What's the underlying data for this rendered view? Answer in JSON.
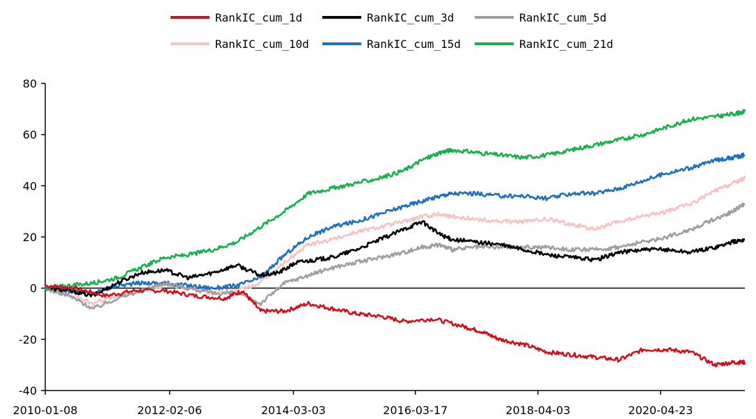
{
  "chart_data": {
    "type": "line",
    "title": "",
    "xlabel": "",
    "ylabel": "",
    "ylim": [
      -40,
      80
    ],
    "yticks": [
      -40,
      -20,
      0,
      20,
      40,
      60,
      80
    ],
    "xlim": [
      0,
      11.7
    ],
    "xticks": [
      {
        "pos": 0.0,
        "label": "2010-01-08"
      },
      {
        "pos": 2.08,
        "label": "2012-02-06"
      },
      {
        "pos": 4.15,
        "label": "2014-03-03"
      },
      {
        "pos": 6.19,
        "label": "2016-03-17"
      },
      {
        "pos": 8.24,
        "label": "2018-04-03"
      },
      {
        "pos": 10.29,
        "label": "2020-04-23"
      }
    ],
    "legend_position": "top",
    "series": [
      {
        "name": "RankIC_cum_1d",
        "color": "#d0101c",
        "x": [
          0,
          0.5,
          1.0,
          1.5,
          2.0,
          2.5,
          3.0,
          3.3,
          3.6,
          4.0,
          4.4,
          4.8,
          5.2,
          5.6,
          6.0,
          6.5,
          7.0,
          7.3,
          7.6,
          8.0,
          8.4,
          8.8,
          9.2,
          9.6,
          10.0,
          10.4,
          10.8,
          11.2,
          11.5,
          11.7
        ],
        "values": [
          1,
          0,
          -3,
          -1,
          -1,
          -3,
          -4,
          -1,
          -9,
          -9,
          -6,
          -8,
          -10,
          -11,
          -13,
          -12,
          -15,
          -17,
          -20,
          -22,
          -25,
          -26,
          -27,
          -28,
          -24,
          -24,
          -25,
          -30,
          -29,
          -29
        ]
      },
      {
        "name": "RankIC_cum_3d",
        "color": "#000000",
        "x": [
          0,
          0.4,
          0.8,
          1.2,
          1.6,
          2.0,
          2.4,
          2.8,
          3.2,
          3.6,
          3.9,
          4.2,
          4.5,
          4.8,
          5.2,
          5.6,
          6.0,
          6.3,
          6.6,
          6.8,
          7.2,
          7.6,
          8.0,
          8.4,
          8.8,
          9.2,
          9.6,
          10.0,
          10.4,
          10.8,
          11.2,
          11.5,
          11.7
        ],
        "values": [
          0,
          -1,
          -3,
          2,
          6,
          7,
          4,
          6,
          9,
          5,
          6,
          10,
          11,
          12,
          15,
          19,
          23,
          26,
          21,
          19,
          18,
          17,
          15,
          13,
          12,
          11,
          14,
          15,
          15,
          14,
          16,
          18,
          19
        ]
      },
      {
        "name": "RankIC_cum_5d",
        "color": "#9e9e9e",
        "x": [
          0,
          0.4,
          0.8,
          1.2,
          1.6,
          2.0,
          2.4,
          2.8,
          3.2,
          3.6,
          4.0,
          4.4,
          4.8,
          5.2,
          5.6,
          6.0,
          6.3,
          6.6,
          6.8,
          7.2,
          7.6,
          8.0,
          8.4,
          8.8,
          9.2,
          9.6,
          10.0,
          10.4,
          10.8,
          11.2,
          11.5,
          11.7
        ],
        "values": [
          0,
          -3,
          -8,
          -4,
          -1,
          2,
          0,
          -2,
          -2,
          -6,
          2,
          5,
          8,
          10,
          12,
          14,
          16,
          17,
          15,
          16,
          16,
          16,
          16,
          15,
          15,
          16,
          18,
          20,
          23,
          27,
          30,
          33
        ]
      },
      {
        "name": "RankIC_cum_10d",
        "color": "#f4c4c4",
        "x": [
          0,
          0.4,
          0.8,
          1.2,
          1.6,
          2.0,
          2.4,
          2.8,
          3.2,
          3.6,
          4.0,
          4.4,
          4.8,
          5.2,
          5.6,
          6.0,
          6.3,
          6.6,
          6.8,
          7.2,
          7.6,
          8.0,
          8.4,
          8.8,
          9.2,
          9.6,
          10.0,
          10.4,
          10.8,
          11.2,
          11.5,
          11.7
        ],
        "values": [
          0,
          -3,
          -6,
          -3,
          -1,
          1,
          0,
          -2,
          -1,
          2,
          10,
          17,
          19,
          22,
          24,
          26,
          28,
          29,
          28,
          27,
          26,
          26,
          27,
          25,
          23,
          26,
          28,
          30,
          33,
          38,
          41,
          43
        ]
      },
      {
        "name": "RankIC_cum_15d",
        "color": "#1f6fbf",
        "x": [
          0,
          0.4,
          0.8,
          1.2,
          1.6,
          2.0,
          2.4,
          2.8,
          3.2,
          3.6,
          4.0,
          4.4,
          4.8,
          5.2,
          5.6,
          6.0,
          6.3,
          6.6,
          6.8,
          7.2,
          7.6,
          8.0,
          8.4,
          8.8,
          9.2,
          9.6,
          10.0,
          10.4,
          10.8,
          11.2,
          11.5,
          11.7
        ],
        "values": [
          0,
          -1,
          -2,
          1,
          2,
          2,
          1,
          0,
          1,
          4,
          13,
          20,
          24,
          26,
          29,
          32,
          34,
          36,
          37,
          37,
          36,
          36,
          35,
          37,
          37,
          39,
          42,
          45,
          47,
          50,
          51,
          52
        ]
      },
      {
        "name": "RankIC_cum_21d",
        "color": "#1aae4e",
        "x": [
          0,
          0.4,
          0.8,
          1.2,
          1.6,
          2.0,
          2.4,
          2.8,
          3.2,
          3.6,
          4.0,
          4.4,
          4.8,
          5.2,
          5.6,
          6.0,
          6.3,
          6.6,
          6.8,
          7.2,
          7.6,
          8.0,
          8.4,
          8.8,
          9.2,
          9.6,
          10.0,
          10.4,
          10.8,
          11.2,
          11.5,
          11.7
        ],
        "values": [
          0,
          1,
          2,
          4,
          8,
          12,
          13,
          15,
          18,
          24,
          30,
          37,
          39,
          41,
          43,
          46,
          50,
          53,
          54,
          53,
          52,
          51,
          52,
          54,
          56,
          58,
          60,
          63,
          66,
          67,
          68,
          69
        ]
      }
    ]
  }
}
